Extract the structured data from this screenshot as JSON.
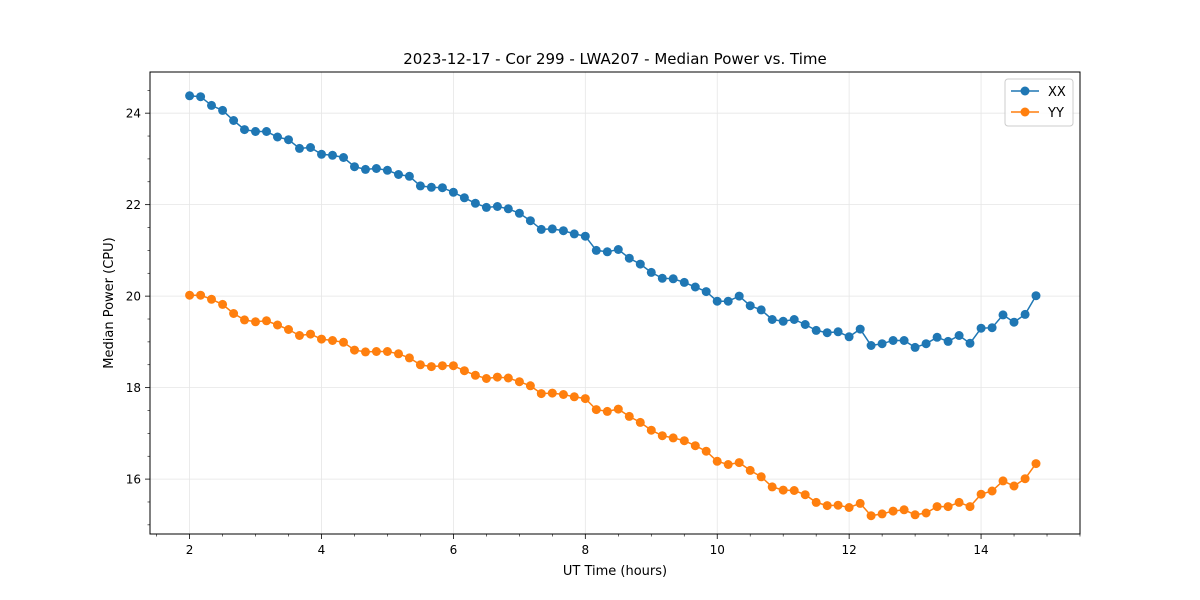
{
  "chart_data": {
    "type": "line",
    "title": "2023-12-17 - Cor 299 - LWA207 - Median Power vs. Time",
    "xlabel": "UT Time (hours)",
    "ylabel": "Median Power (CPU)",
    "xlim": [
      1.4,
      15.5
    ],
    "ylim": [
      14.8,
      24.9
    ],
    "xticks": [
      2,
      4,
      6,
      8,
      10,
      12,
      14
    ],
    "yticks": [
      16,
      18,
      20,
      22,
      24
    ],
    "grid": true,
    "legend_position": "top-right",
    "x": [
      2.0,
      2.167,
      2.333,
      2.5,
      2.667,
      2.833,
      3.0,
      3.167,
      3.333,
      3.5,
      3.667,
      3.833,
      4.0,
      4.167,
      4.333,
      4.5,
      4.667,
      4.833,
      5.0,
      5.167,
      5.333,
      5.5,
      5.667,
      5.833,
      6.0,
      6.167,
      6.333,
      6.5,
      6.667,
      6.833,
      7.0,
      7.167,
      7.333,
      7.5,
      7.667,
      7.833,
      8.0,
      8.167,
      8.333,
      8.5,
      8.667,
      8.833,
      9.0,
      9.167,
      9.333,
      9.5,
      9.667,
      9.833,
      10.0,
      10.167,
      10.333,
      10.5,
      10.667,
      10.833,
      11.0,
      11.167,
      11.333,
      11.5,
      11.667,
      11.833,
      12.0,
      12.167,
      12.333,
      12.5,
      12.667,
      12.833,
      13.0,
      13.167,
      13.333,
      13.5,
      13.667,
      13.833,
      14.0,
      14.167,
      14.333,
      14.5,
      14.667,
      14.833
    ],
    "series": [
      {
        "name": "XX",
        "color": "#1f77b4",
        "values": [
          24.38,
          24.36,
          24.17,
          24.06,
          23.84,
          23.64,
          23.6,
          23.6,
          23.48,
          23.42,
          23.23,
          23.25,
          23.1,
          23.08,
          23.03,
          22.83,
          22.77,
          22.79,
          22.75,
          22.66,
          22.62,
          22.41,
          22.38,
          22.37,
          22.27,
          22.15,
          22.03,
          21.94,
          21.96,
          21.91,
          21.81,
          21.65,
          21.46,
          21.47,
          21.43,
          21.36,
          21.31,
          21.0,
          20.97,
          21.02,
          20.83,
          20.7,
          20.52,
          20.39,
          20.38,
          20.3,
          20.2,
          20.1,
          19.89,
          19.89,
          20.0,
          19.79,
          19.7,
          19.49,
          19.45,
          19.49,
          19.38,
          19.25,
          19.2,
          19.22,
          19.11,
          19.28,
          18.92,
          18.96,
          19.03,
          19.03,
          18.88,
          18.96,
          19.1,
          19.01,
          19.14,
          18.97,
          19.3,
          19.31,
          19.59,
          19.43,
          19.6,
          20.01
        ]
      },
      {
        "name": "YY",
        "color": "#ff7f0e",
        "values": [
          20.02,
          20.02,
          19.93,
          19.82,
          19.62,
          19.48,
          19.44,
          19.46,
          19.37,
          19.27,
          19.14,
          19.17,
          19.06,
          19.03,
          18.99,
          18.82,
          18.78,
          18.79,
          18.79,
          18.74,
          18.65,
          18.5,
          18.46,
          18.48,
          18.48,
          18.37,
          18.27,
          18.2,
          18.23,
          18.21,
          18.13,
          18.04,
          17.87,
          17.88,
          17.85,
          17.8,
          17.76,
          17.52,
          17.48,
          17.53,
          17.37,
          17.24,
          17.07,
          16.95,
          16.9,
          16.84,
          16.73,
          16.61,
          16.39,
          16.32,
          16.36,
          16.19,
          16.05,
          15.83,
          15.76,
          15.75,
          15.66,
          15.49,
          15.42,
          15.43,
          15.38,
          15.47,
          15.2,
          15.24,
          15.3,
          15.33,
          15.22,
          15.26,
          15.4,
          15.4,
          15.49,
          15.4,
          15.67,
          15.74,
          15.96,
          15.85,
          16.01,
          16.34
        ]
      }
    ]
  }
}
